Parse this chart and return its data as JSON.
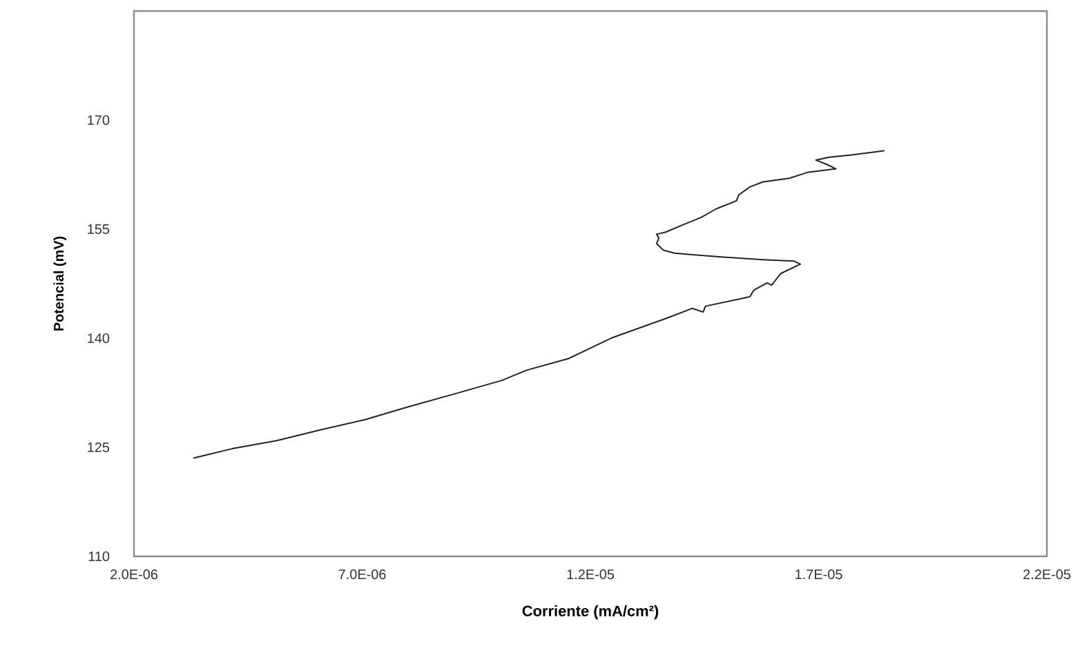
{
  "chart_data": {
    "type": "line",
    "xlabel": "Corriente (mA/cm²)",
    "ylabel": "Potencial (mV)",
    "xlim": [
      2e-06,
      2.2e-05
    ],
    "ylim": [
      110,
      185
    ],
    "xticks": [
      {
        "value": 2e-06,
        "label": "2.0E-06"
      },
      {
        "value": 7e-06,
        "label": "7.0E-06"
      },
      {
        "value": 1.2e-05,
        "label": "1.2E-05"
      },
      {
        "value": 1.7e-05,
        "label": "1.7E-05"
      },
      {
        "value": 2.2e-05,
        "label": "2.2E-05"
      }
    ],
    "yticks": [
      110,
      125,
      140,
      155,
      170
    ],
    "grid": false,
    "marker": "none",
    "line_style": "solid",
    "series": [
      {
        "color": "#222222",
        "x": [
          3.3e-06,
          4.15e-06,
          5.12e-06,
          6.09e-06,
          7.06e-06,
          8.03e-06,
          9e-06,
          1.006e-05,
          1.06e-05,
          1.152e-05,
          1.249e-05,
          1.365e-05,
          1.423e-05,
          1.447e-05,
          1.452e-05,
          1.549e-05,
          1.558e-05,
          1.587e-05,
          1.597e-05,
          1.617e-05,
          1.66e-05,
          1.646e-05,
          1.578e-05,
          1.481e-05,
          1.384e-05,
          1.36e-05,
          1.345e-05,
          1.35e-05,
          1.345e-05,
          1.365e-05,
          1.403e-05,
          1.442e-05,
          1.476e-05,
          1.52e-05,
          1.525e-05,
          1.549e-05,
          1.578e-05,
          1.636e-05,
          1.675e-05,
          1.738e-05,
          1.718e-05,
          1.694e-05,
          1.723e-05,
          1.772e-05,
          1.844e-05
        ],
        "values": [
          123.5,
          124.8,
          125.9,
          127.4,
          128.8,
          130.6,
          132.3,
          134.2,
          135.6,
          137.2,
          140.1,
          142.7,
          144.1,
          143.6,
          144.4,
          145.7,
          146.6,
          147.6,
          147.3,
          148.9,
          150.2,
          150.6,
          150.8,
          151.2,
          151.7,
          152.1,
          153.0,
          153.8,
          154.3,
          154.6,
          155.6,
          156.6,
          157.8,
          158.9,
          159.7,
          160.8,
          161.5,
          162.0,
          162.8,
          163.3,
          163.9,
          164.5,
          164.9,
          165.2,
          165.8
        ]
      }
    ]
  }
}
